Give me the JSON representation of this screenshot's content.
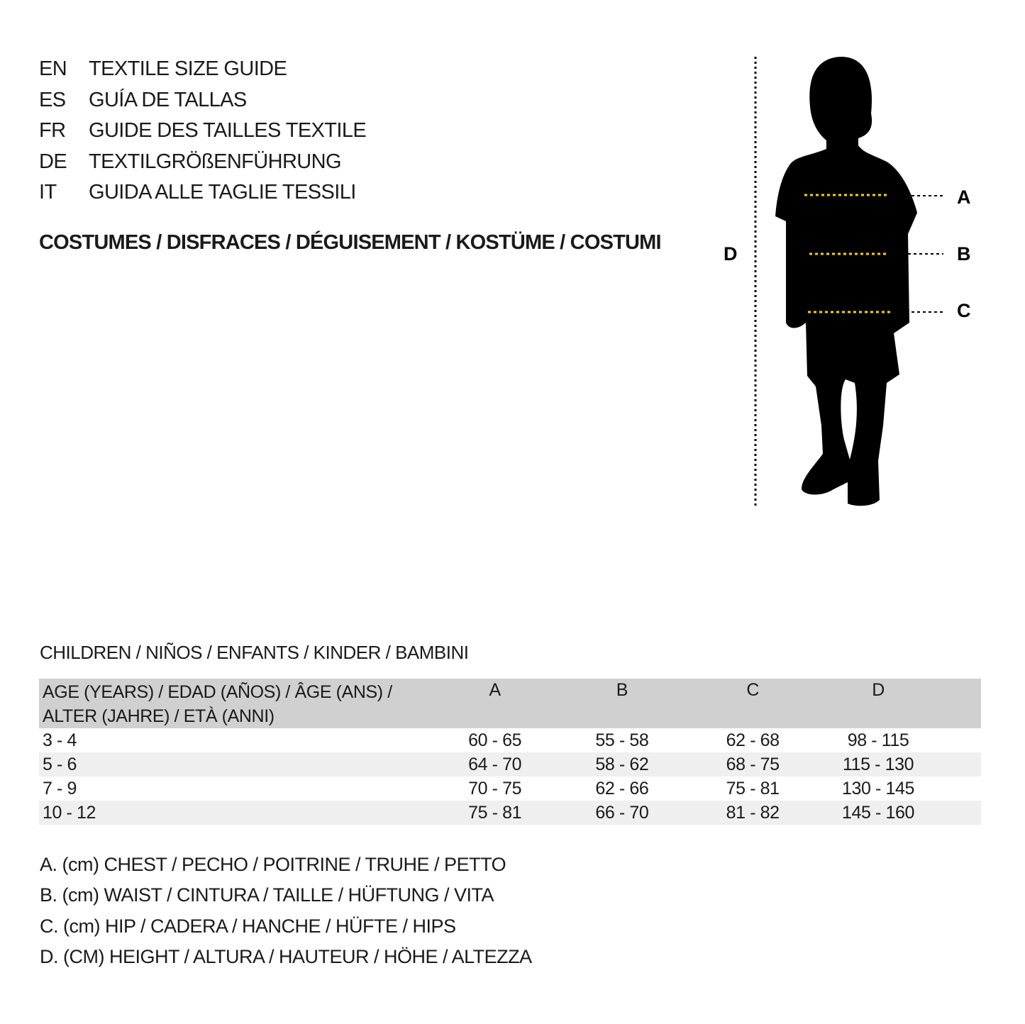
{
  "titles": [
    {
      "code": "EN",
      "text": "TEXTILE SIZE GUIDE"
    },
    {
      "code": "ES",
      "text": "GUÍA DE TALLAS"
    },
    {
      "code": "FR",
      "text": "GUIDE DES TAILLES TEXTILE"
    },
    {
      "code": "DE",
      "text": "TEXTILGRÖßENFÜHRUNG"
    },
    {
      "code": "IT",
      "text": "GUIDA ALLE TAGLIE TESSILI"
    }
  ],
  "subtitle": "COSTUMES / DISFRACES / DÉGUISEMENT / KOSTÜME / COSTUMI",
  "figure": {
    "labels": {
      "a": "A",
      "b": "B",
      "c": "C",
      "d": "D"
    },
    "line_color": "#f2d21b",
    "silhouette_color": "#000000"
  },
  "section": "CHILDREN / NIÑOS / ENFANTS / KINDER / BAMBINI",
  "table": {
    "header_line1": "AGE (YEARS) / EDAD (AÑOS) / ÂGE (ANS) /",
    "header_line2": "ALTER (JAHRE) / ETÀ (ANNI)",
    "columns": [
      "A",
      "B",
      "C",
      "D"
    ],
    "rows": [
      [
        "3 - 4",
        "60 - 65",
        "55 - 58",
        "62 - 68",
        "98 - 115"
      ],
      [
        "5 - 6",
        "64 - 70",
        "58 - 62",
        "68 - 75",
        "115 - 130"
      ],
      [
        "7 - 9",
        "70 - 75",
        "62 - 66",
        "75 - 81",
        "130 - 145"
      ],
      [
        "10 - 12",
        "75 - 81",
        "66 - 70",
        "81 - 82",
        "145 - 160"
      ]
    ]
  },
  "legend": [
    "A. (cm) CHEST / PECHO / POITRINE / TRUHE / PETTO",
    "B. (cm) WAIST / CINTURA / TAILLE / HÜFTUNG / VITA",
    "C. (cm) HIP / CADERA / HANCHE / HÜFTE / HIPS",
    "D. (CM) HEIGHT / ALTURA / HAUTEUR / HÖHE / ALTEZZA"
  ]
}
